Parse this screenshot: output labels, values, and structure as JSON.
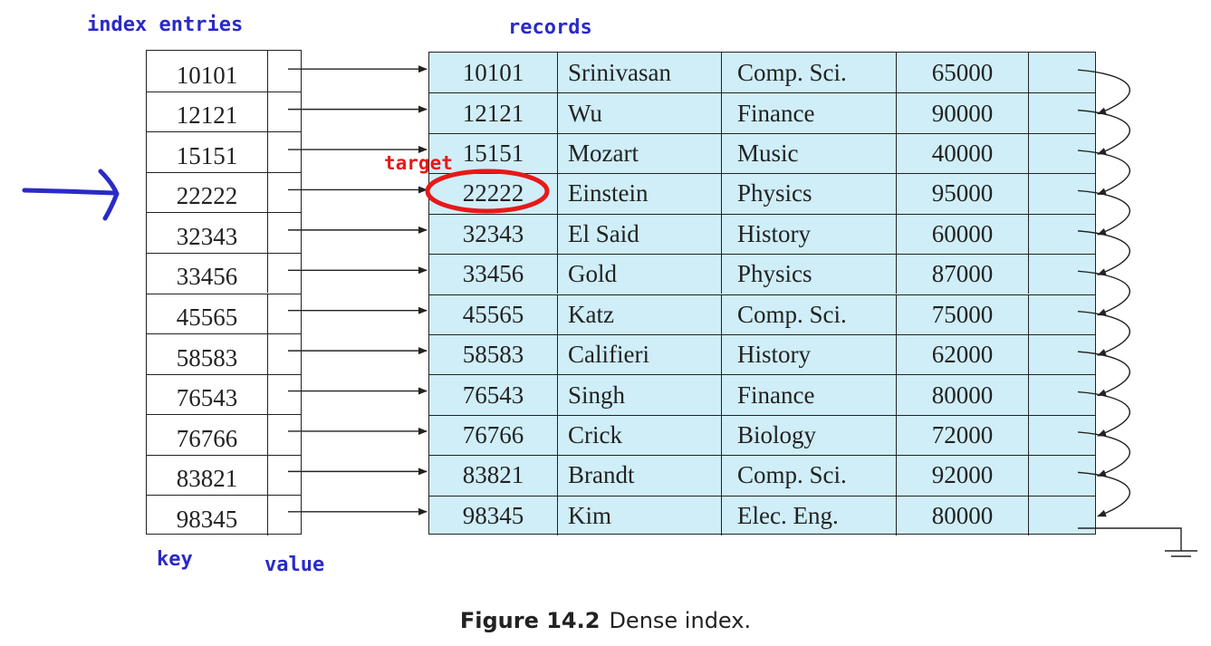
{
  "labels": {
    "index_entries": "index entries",
    "records": "records",
    "key": "key",
    "value": "value",
    "target": "target"
  },
  "index_keys": [
    "10101",
    "12121",
    "15151",
    "22222",
    "32343",
    "33456",
    "45565",
    "58583",
    "76543",
    "76766",
    "83821",
    "98345"
  ],
  "records": [
    {
      "id": "10101",
      "name": "Srinivasan",
      "dept": "Comp. Sci.",
      "salary": "65000"
    },
    {
      "id": "12121",
      "name": "Wu",
      "dept": "Finance",
      "salary": "90000"
    },
    {
      "id": "15151",
      "name": "Mozart",
      "dept": "Music",
      "salary": "40000"
    },
    {
      "id": "22222",
      "name": "Einstein",
      "dept": "Physics",
      "salary": "95000"
    },
    {
      "id": "32343",
      "name": "El Said",
      "dept": "History",
      "salary": "60000"
    },
    {
      "id": "33456",
      "name": "Gold",
      "dept": "Physics",
      "salary": "87000"
    },
    {
      "id": "45565",
      "name": "Katz",
      "dept": "Comp. Sci.",
      "salary": "75000"
    },
    {
      "id": "58583",
      "name": "Califieri",
      "dept": "History",
      "salary": "62000"
    },
    {
      "id": "76543",
      "name": "Singh",
      "dept": "Finance",
      "salary": "80000"
    },
    {
      "id": "76766",
      "name": "Crick",
      "dept": "Biology",
      "salary": "72000"
    },
    {
      "id": "83821",
      "name": "Brandt",
      "dept": "Comp. Sci.",
      "salary": "92000"
    },
    {
      "id": "98345",
      "name": "Kim",
      "dept": "Elec. Eng.",
      "salary": "80000"
    }
  ],
  "caption": {
    "figure_number": "Figure 14.2",
    "text": "Dense index."
  },
  "colors": {
    "annotation_blue": "#2a2ac8",
    "annotation_red": "#e81818",
    "record_fill": "#cfeef8"
  }
}
